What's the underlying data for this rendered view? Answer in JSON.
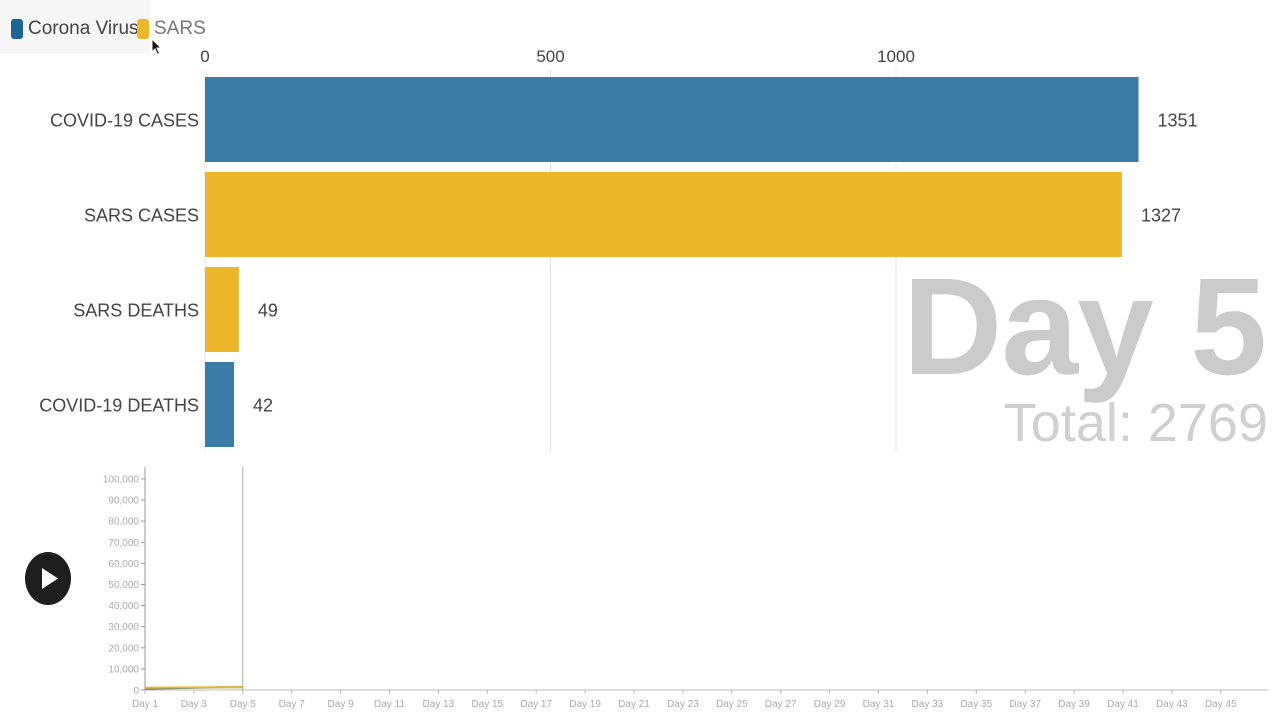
{
  "colors": {
    "corona": "#3a7ca5",
    "sars": "#ecb72b",
    "grid": "#e4e4e4",
    "watermark": "#cbcbcb"
  },
  "legend": [
    {
      "label": "Corona Virus",
      "color": "#1f6494"
    },
    {
      "label": "SARS",
      "color": "#ecb72b"
    }
  ],
  "overlay": {
    "day": "Day 5",
    "total": "Total: 2769"
  },
  "controls": {
    "play_icon": "play-icon"
  },
  "chart_data": [
    {
      "type": "bar",
      "orientation": "horizontal",
      "categories": [
        "COVID-19 CASES",
        "SARS CASES",
        "SARS DEATHS",
        "COVID-19 DEATHS"
      ],
      "values": [
        1351,
        1327,
        49,
        42
      ],
      "series_of_category": [
        "Corona Virus",
        "SARS",
        "SARS",
        "Corona Virus"
      ],
      "xlim": [
        0,
        1400
      ],
      "xticks": [
        0,
        500,
        1000
      ],
      "grid": true,
      "legend_position": "top-left"
    },
    {
      "type": "area",
      "x": [
        "Day 1",
        "Day 2",
        "Day 3",
        "Day 4",
        "Day 5"
      ],
      "series": [
        {
          "name": "Corona Virus",
          "values": [
            580,
            840,
            1070,
            1260,
            1351
          ]
        },
        {
          "name": "SARS",
          "values": [
            1100,
            1180,
            1230,
            1290,
            1327
          ]
        }
      ],
      "current_day": "Day 5",
      "xticks": [
        "Day 1",
        "Day 3",
        "Day 5",
        "Day 7",
        "Day 9",
        "Day 11",
        "Day 13",
        "Day 15",
        "Day 17",
        "Day 19",
        "Day 21",
        "Day 23",
        "Day 25",
        "Day 27",
        "Day 29",
        "Day 31",
        "Day 33",
        "Day 35",
        "Day 37",
        "Day 39",
        "Day 41",
        "Day 43",
        "Day 45"
      ],
      "yticks": [
        "0",
        "10,000",
        "20,000",
        "30,000",
        "40,000",
        "50,000",
        "60,000",
        "70,000",
        "80,000",
        "90,000",
        "100,000"
      ],
      "ylim": [
        0,
        105000
      ],
      "x_day_range": [
        1,
        46
      ],
      "grid": false
    }
  ]
}
